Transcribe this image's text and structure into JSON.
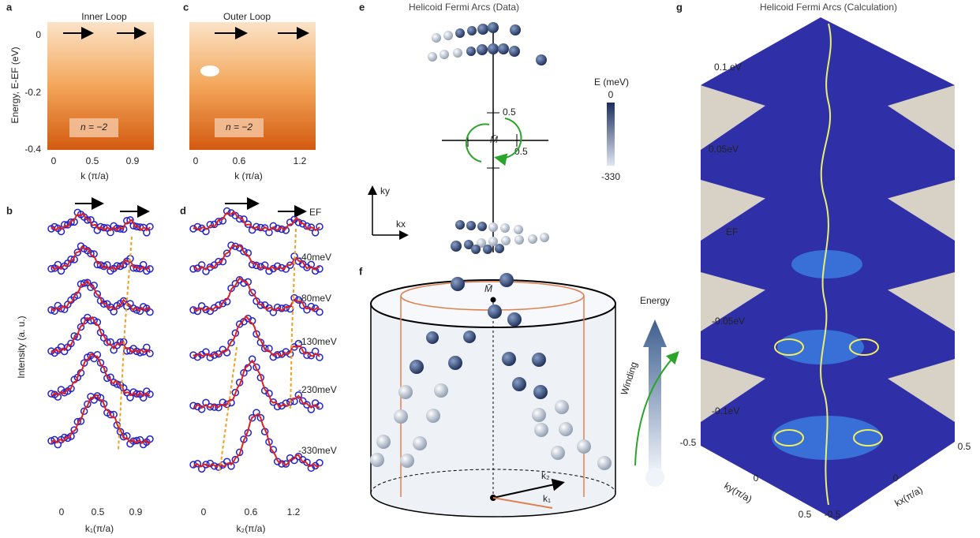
{
  "panel_a": {
    "letter": "a",
    "title": "Inner Loop",
    "y_label": "Energy, E-EF (eV)",
    "y_ticks": [
      "0",
      "-0.2",
      "-0.4"
    ],
    "x_ticks": [
      "0",
      "0.5",
      "0.9"
    ],
    "x_label": "k (π/a)",
    "annotation": "n = −2"
  },
  "panel_c": {
    "letter": "c",
    "title": "Outer Loop",
    "x_ticks": [
      "0",
      "0.6",
      "1.2"
    ],
    "x_label": "k (π/a)",
    "annotation": "n = −2"
  },
  "panel_b": {
    "letter": "b",
    "y_label": "Intensity (a. u.)",
    "x_ticks": [
      "0",
      "0.5",
      "0.9"
    ],
    "x_label": "k₁(π/a)"
  },
  "panel_d": {
    "letter": "d",
    "fermi_label": "EF",
    "energy_labels": [
      "-40meV",
      "-80meV",
      "-130meV",
      "-230meV",
      "-330meV"
    ],
    "x_ticks": [
      "0",
      "0.6",
      "1.2"
    ],
    "x_label": "k₂(π/a)"
  },
  "panel_e": {
    "letter": "e",
    "title": "Helicoid  Fermi Arcs (Data)",
    "tick_y": "0.5",
    "tick_x": "0.5",
    "center": "M̄",
    "colorbar_title": "E (meV)",
    "colorbar_top": "0",
    "colorbar_bottom": "-330",
    "ky": "ky",
    "kx": "kx"
  },
  "panel_f": {
    "letter": "f",
    "center": "M̄",
    "k2": "k₂",
    "k1": "k₁",
    "energy": "Energy",
    "winding": "Winding"
  },
  "panel_g": {
    "letter": "g",
    "title": "Helicoid  Fermi Arcs  (Calculation)",
    "energy_labels": [
      "0.1 eV",
      "0.05eV",
      "EF",
      "-0.05eV",
      "-0.1eV"
    ],
    "ky_ticks": [
      "-0.5",
      "0",
      "0.5"
    ],
    "ky_label": "ky(π/a)",
    "kx_ticks": [
      "-0.5",
      "0",
      "0.5"
    ],
    "kx_label": "kx(π/a)",
    "corner_tick": "0.5"
  }
}
